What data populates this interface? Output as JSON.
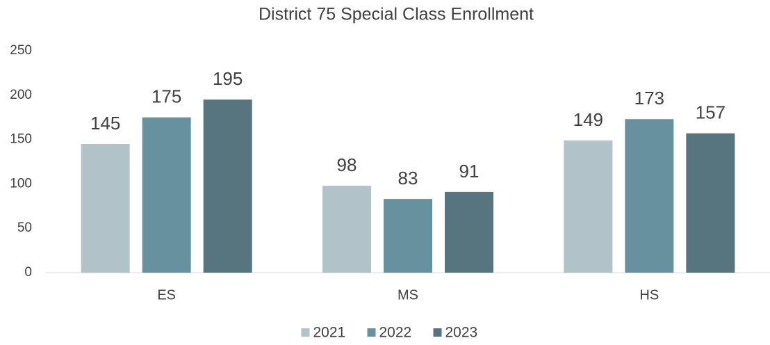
{
  "chart_data": {
    "type": "bar",
    "title": "District 75 Special Class Enrollment",
    "categories": [
      "ES",
      "MS",
      "HS"
    ],
    "series": [
      {
        "name": "2021",
        "color": "#b1c2c8",
        "values": [
          145,
          98,
          149
        ]
      },
      {
        "name": "2022",
        "color": "#6891a0",
        "values": [
          175,
          83,
          173
        ]
      },
      {
        "name": "2023",
        "color": "#56757e",
        "values": [
          195,
          91,
          157
        ]
      }
    ],
    "ylim": [
      0,
      250
    ],
    "yticks": [
      0,
      50,
      100,
      150,
      200,
      250
    ],
    "grid": false,
    "legend": "bottom"
  }
}
